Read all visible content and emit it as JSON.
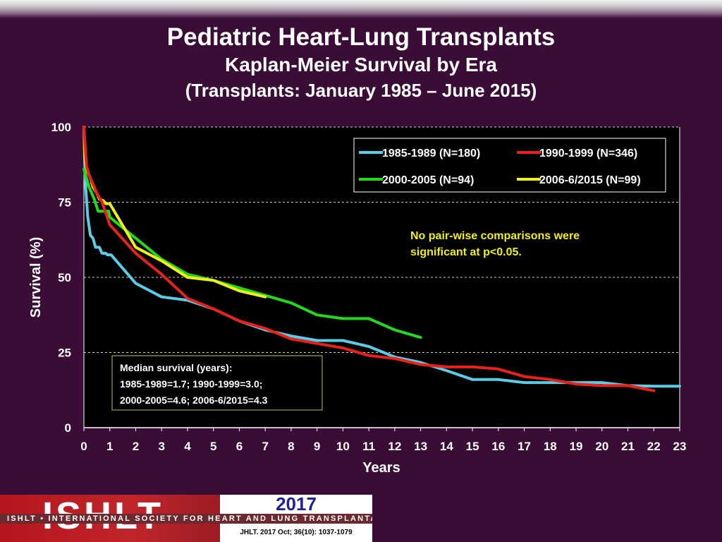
{
  "title": "Pediatric Heart-Lung Transplants",
  "subtitle": "Kaplan-Meier Survival by Era",
  "subtitle2": "(Transplants: January 1985 – June 2015)",
  "annotation": [
    "No pair-wise comparisons were",
    "significant at p<0.05."
  ],
  "median_box": [
    "Median survival (years):",
    "1985-1989=1.7; 1990-1999=3.0;",
    "2000-2005=4.6; 2006-6/2015=4.3"
  ],
  "footer": {
    "logo_text": "ISHLT",
    "org_name": "ISHLT • INTERNATIONAL SOCIETY FOR HEART AND LUNG TRANSPLANTATION",
    "year": "2017",
    "citation": "JHLT. 2017 Oct; 36(10): 1037-1079"
  },
  "chart_data": {
    "type": "line",
    "xlabel": "Years",
    "ylabel": "Survival (%)",
    "xlim": [
      0,
      23
    ],
    "ylim": [
      0,
      100
    ],
    "xticks": [
      0,
      1,
      2,
      3,
      4,
      5,
      6,
      7,
      8,
      9,
      10,
      11,
      12,
      13,
      14,
      15,
      16,
      17,
      18,
      19,
      20,
      21,
      22,
      23
    ],
    "yticks": [
      0,
      25,
      50,
      75,
      100
    ],
    "grid": "horizontal dashed",
    "legend_position": "top-right",
    "series": [
      {
        "name": "1985-1989 (N=180)",
        "color": "#5bcbe6",
        "points": [
          [
            0,
            100
          ],
          [
            0.05,
            83
          ],
          [
            0.1,
            76
          ],
          [
            0.15,
            70
          ],
          [
            0.25,
            64
          ],
          [
            0.35,
            63
          ],
          [
            0.45,
            60
          ],
          [
            0.6,
            60
          ],
          [
            0.7,
            58
          ],
          [
            0.85,
            58
          ],
          [
            0.9,
            57.5
          ],
          [
            1.05,
            57.5
          ],
          [
            2,
            48
          ],
          [
            3,
            43.5
          ],
          [
            4,
            42.4
          ],
          [
            5,
            39.5
          ],
          [
            6,
            35.5
          ],
          [
            7,
            32.5
          ],
          [
            8,
            30.5
          ],
          [
            9,
            29
          ],
          [
            10,
            29
          ],
          [
            11,
            27
          ],
          [
            12,
            23.5
          ],
          [
            13,
            21.7
          ],
          [
            14,
            19
          ],
          [
            15,
            16
          ],
          [
            16,
            16
          ],
          [
            17,
            15
          ],
          [
            18,
            15
          ],
          [
            19,
            15
          ],
          [
            20,
            15
          ],
          [
            21,
            14
          ],
          [
            22,
            13.8
          ],
          [
            23,
            13.8
          ]
        ]
      },
      {
        "name": "1990-1999 (N=346)",
        "color": "#e8221a",
        "points": [
          [
            0,
            100
          ],
          [
            0.1,
            87
          ],
          [
            0.2,
            84
          ],
          [
            0.3,
            82
          ],
          [
            0.5,
            78
          ],
          [
            0.7,
            75
          ],
          [
            1,
            67.5
          ],
          [
            2,
            58
          ],
          [
            3,
            51
          ],
          [
            4,
            43
          ],
          [
            5,
            39.5
          ],
          [
            6,
            35.5
          ],
          [
            7,
            33
          ],
          [
            8,
            29.5
          ],
          [
            9,
            28
          ],
          [
            10,
            26.5
          ],
          [
            11,
            24
          ],
          [
            12,
            23
          ],
          [
            13,
            21
          ],
          [
            14,
            20.2
          ],
          [
            15,
            20.2
          ],
          [
            16,
            19.5
          ],
          [
            17,
            17
          ],
          [
            18,
            16
          ],
          [
            19,
            14.5
          ],
          [
            20,
            14
          ],
          [
            21,
            14
          ],
          [
            22,
            12.3
          ]
        ]
      },
      {
        "name": "2000-2005 (N=94)",
        "color": "#22d91e",
        "points": [
          [
            0,
            86
          ],
          [
            0.2,
            80
          ],
          [
            0.4,
            76
          ],
          [
            0.55,
            72
          ],
          [
            0.8,
            72
          ],
          [
            0.95,
            72
          ],
          [
            1,
            70
          ],
          [
            2,
            63
          ],
          [
            3,
            56
          ],
          [
            4,
            51
          ],
          [
            5,
            49
          ],
          [
            6,
            46.5
          ],
          [
            7,
            44
          ],
          [
            8,
            41.5
          ],
          [
            9,
            37.5
          ],
          [
            10,
            36.3
          ],
          [
            11,
            36.3
          ],
          [
            12,
            32.5
          ],
          [
            13,
            30
          ]
        ]
      },
      {
        "name": "2006-6/2015 (N=99)",
        "color": "#f2ee1e",
        "points": [
          [
            0,
            100
          ],
          [
            0.05,
            88
          ],
          [
            0.15,
            85
          ],
          [
            0.25,
            83
          ],
          [
            0.35,
            80
          ],
          [
            0.5,
            78
          ],
          [
            0.6,
            76
          ],
          [
            0.75,
            75.5
          ],
          [
            0.85,
            74.5
          ],
          [
            1,
            74.5
          ],
          [
            2,
            60
          ],
          [
            3,
            55.5
          ],
          [
            4,
            50
          ],
          [
            5,
            49
          ],
          [
            6,
            45.5
          ],
          [
            7,
            43.5
          ]
        ]
      }
    ]
  }
}
